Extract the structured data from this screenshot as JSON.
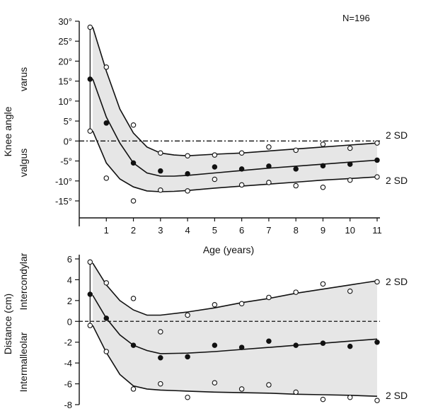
{
  "chart_data": [
    {
      "type": "scatter",
      "annotation": "N=196",
      "ylabel": "Knee angle",
      "ylabel_upper": "varus",
      "ylabel_lower": "valgus",
      "xlabel": "Age (years)",
      "xlim": [
        0,
        11
      ],
      "ylim": [
        -17,
        30
      ],
      "x_ticks": [
        "1",
        "2",
        "3",
        "4",
        "5",
        "6",
        "7",
        "8",
        "9",
        "10",
        "11"
      ],
      "y_ticks": [
        "30°",
        "25°",
        "20°",
        "15°",
        "10°",
        "5°",
        "0°",
        "-5°",
        "-10°",
        "-15°"
      ],
      "y_tick_values": [
        30,
        25,
        20,
        15,
        10,
        5,
        0,
        -5,
        -10,
        -15
      ],
      "zero_line": "dash-dot",
      "band_labels": [
        "2 SD",
        "2 SD"
      ],
      "series": [
        {
          "role": "upper-2sd-curve",
          "x": [
            0.5,
            1,
            1.5,
            2,
            2.5,
            3,
            3.5,
            4,
            5,
            6,
            7,
            8,
            9,
            10,
            11
          ],
          "values": [
            28.5,
            17.5,
            8,
            2,
            -1.5,
            -3,
            -3.5,
            -3.7,
            -3.3,
            -3,
            -2.5,
            -2,
            -1.5,
            -1,
            -0.5
          ]
        },
        {
          "role": "mean-curve",
          "x": [
            0.5,
            1,
            1.5,
            2,
            2.5,
            3,
            3.5,
            4,
            5,
            6,
            7,
            8,
            9,
            10,
            11
          ],
          "values": [
            15.5,
            6,
            -0.5,
            -5.5,
            -8,
            -8.8,
            -8.8,
            -8.6,
            -8,
            -7.4,
            -6.8,
            -6.3,
            -5.8,
            -5.3,
            -4.8
          ]
        },
        {
          "role": "lower-2sd-curve",
          "x": [
            0.5,
            1,
            1.5,
            2,
            2.5,
            3,
            3.5,
            4,
            5,
            6,
            7,
            8,
            9,
            10,
            11
          ],
          "values": [
            2.5,
            -5.5,
            -9.5,
            -11.5,
            -12.5,
            -12.7,
            -12.6,
            -12.4,
            -11.8,
            -11.3,
            -10.8,
            -10.3,
            -9.8,
            -9.4,
            -9
          ]
        },
        {
          "role": "upper-2sd-observed",
          "marker": "open",
          "x": [
            0.4,
            1,
            2,
            3,
            4,
            5,
            6,
            7,
            8,
            9,
            10,
            11
          ],
          "values": [
            28.5,
            18.5,
            4,
            -3,
            -3.7,
            -3.5,
            -3,
            -1.5,
            -2.3,
            -0.8,
            -1.8,
            -0.5
          ]
        },
        {
          "role": "mean-observed",
          "marker": "filled",
          "x": [
            0.4,
            1,
            2,
            3,
            4,
            5,
            6,
            7,
            8,
            9,
            10,
            11
          ],
          "values": [
            15.5,
            4.5,
            -5.5,
            -7.5,
            -8.2,
            -6.5,
            -7,
            -6.3,
            -7,
            -6.2,
            -5.8,
            -4.8
          ]
        },
        {
          "role": "lower-2sd-observed",
          "marker": "open",
          "x": [
            0.4,
            1,
            2,
            3,
            4,
            5,
            6,
            7,
            8,
            9,
            10,
            11
          ],
          "values": [
            2.5,
            -9.3,
            -15,
            -12.3,
            -12.5,
            -9.6,
            -11,
            -10.4,
            -11.2,
            -11.6,
            -9.8,
            -9
          ]
        }
      ]
    },
    {
      "type": "scatter",
      "ylabel": "Distance (cm)",
      "ylabel_upper": "Intercondylar",
      "ylabel_lower": "Intermalleolar",
      "xlim": [
        0,
        11
      ],
      "ylim": [
        -8,
        6.5
      ],
      "y_ticks": [
        "6",
        "4",
        "2",
        "0",
        "-2",
        "-4",
        "-6",
        "-8"
      ],
      "y_tick_values": [
        6,
        4,
        2,
        0,
        -2,
        -4,
        -6,
        -8
      ],
      "zero_line": "dashed",
      "band_labels": [
        "2 SD",
        "2 SD"
      ],
      "series": [
        {
          "role": "upper-2sd-curve",
          "x": [
            0.5,
            1,
            1.5,
            2,
            2.5,
            3,
            4,
            5,
            6,
            7,
            8,
            9,
            10,
            11
          ],
          "values": [
            5.6,
            3.5,
            2,
            1.1,
            0.6,
            0.6,
            0.9,
            1.3,
            1.8,
            2.2,
            2.7,
            3.1,
            3.5,
            3.9
          ]
        },
        {
          "role": "mean-curve",
          "x": [
            0.5,
            1,
            1.5,
            2,
            2.5,
            3,
            4,
            5,
            6,
            7,
            8,
            9,
            10,
            11
          ],
          "values": [
            2.5,
            0.3,
            -1.3,
            -2.3,
            -2.8,
            -3.1,
            -3.05,
            -2.9,
            -2.7,
            -2.5,
            -2.3,
            -2.1,
            -1.9,
            -1.7
          ]
        },
        {
          "role": "lower-2sd-curve",
          "x": [
            0.5,
            1,
            1.5,
            2,
            2.5,
            3,
            4,
            5,
            6,
            7,
            8,
            9,
            10,
            11
          ],
          "values": [
            -0.4,
            -3,
            -5.1,
            -6.2,
            -6.5,
            -6.6,
            -6.7,
            -6.8,
            -6.85,
            -6.9,
            -7,
            -7.05,
            -7.1,
            -7.2
          ]
        },
        {
          "role": "upper-2sd-observed",
          "marker": "open",
          "x": [
            0.4,
            1,
            2,
            3,
            4,
            5,
            6,
            7,
            8,
            9,
            10,
            11
          ],
          "values": [
            5.7,
            3.7,
            2.2,
            -1,
            0.6,
            1.6,
            1.7,
            2.3,
            2.8,
            3.6,
            2.9,
            3.8
          ]
        },
        {
          "role": "mean-observed",
          "marker": "filled",
          "x": [
            0.4,
            1,
            2,
            3,
            4,
            5,
            6,
            7,
            8,
            9,
            10,
            11
          ],
          "values": [
            2.6,
            0.3,
            -2.3,
            -3.5,
            -3.4,
            -2.3,
            -2.5,
            -1.9,
            -2.3,
            -2.1,
            -2.4,
            -2
          ]
        },
        {
          "role": "lower-2sd-observed",
          "marker": "open",
          "x": [
            0.4,
            1,
            2,
            3,
            4,
            5,
            6,
            7,
            8,
            9,
            10,
            11
          ],
          "values": [
            -0.4,
            -2.9,
            -6.5,
            -6,
            -7.3,
            -5.9,
            -6.5,
            -6.1,
            -6.8,
            -7.5,
            -7.3,
            -7.6
          ]
        }
      ]
    }
  ]
}
